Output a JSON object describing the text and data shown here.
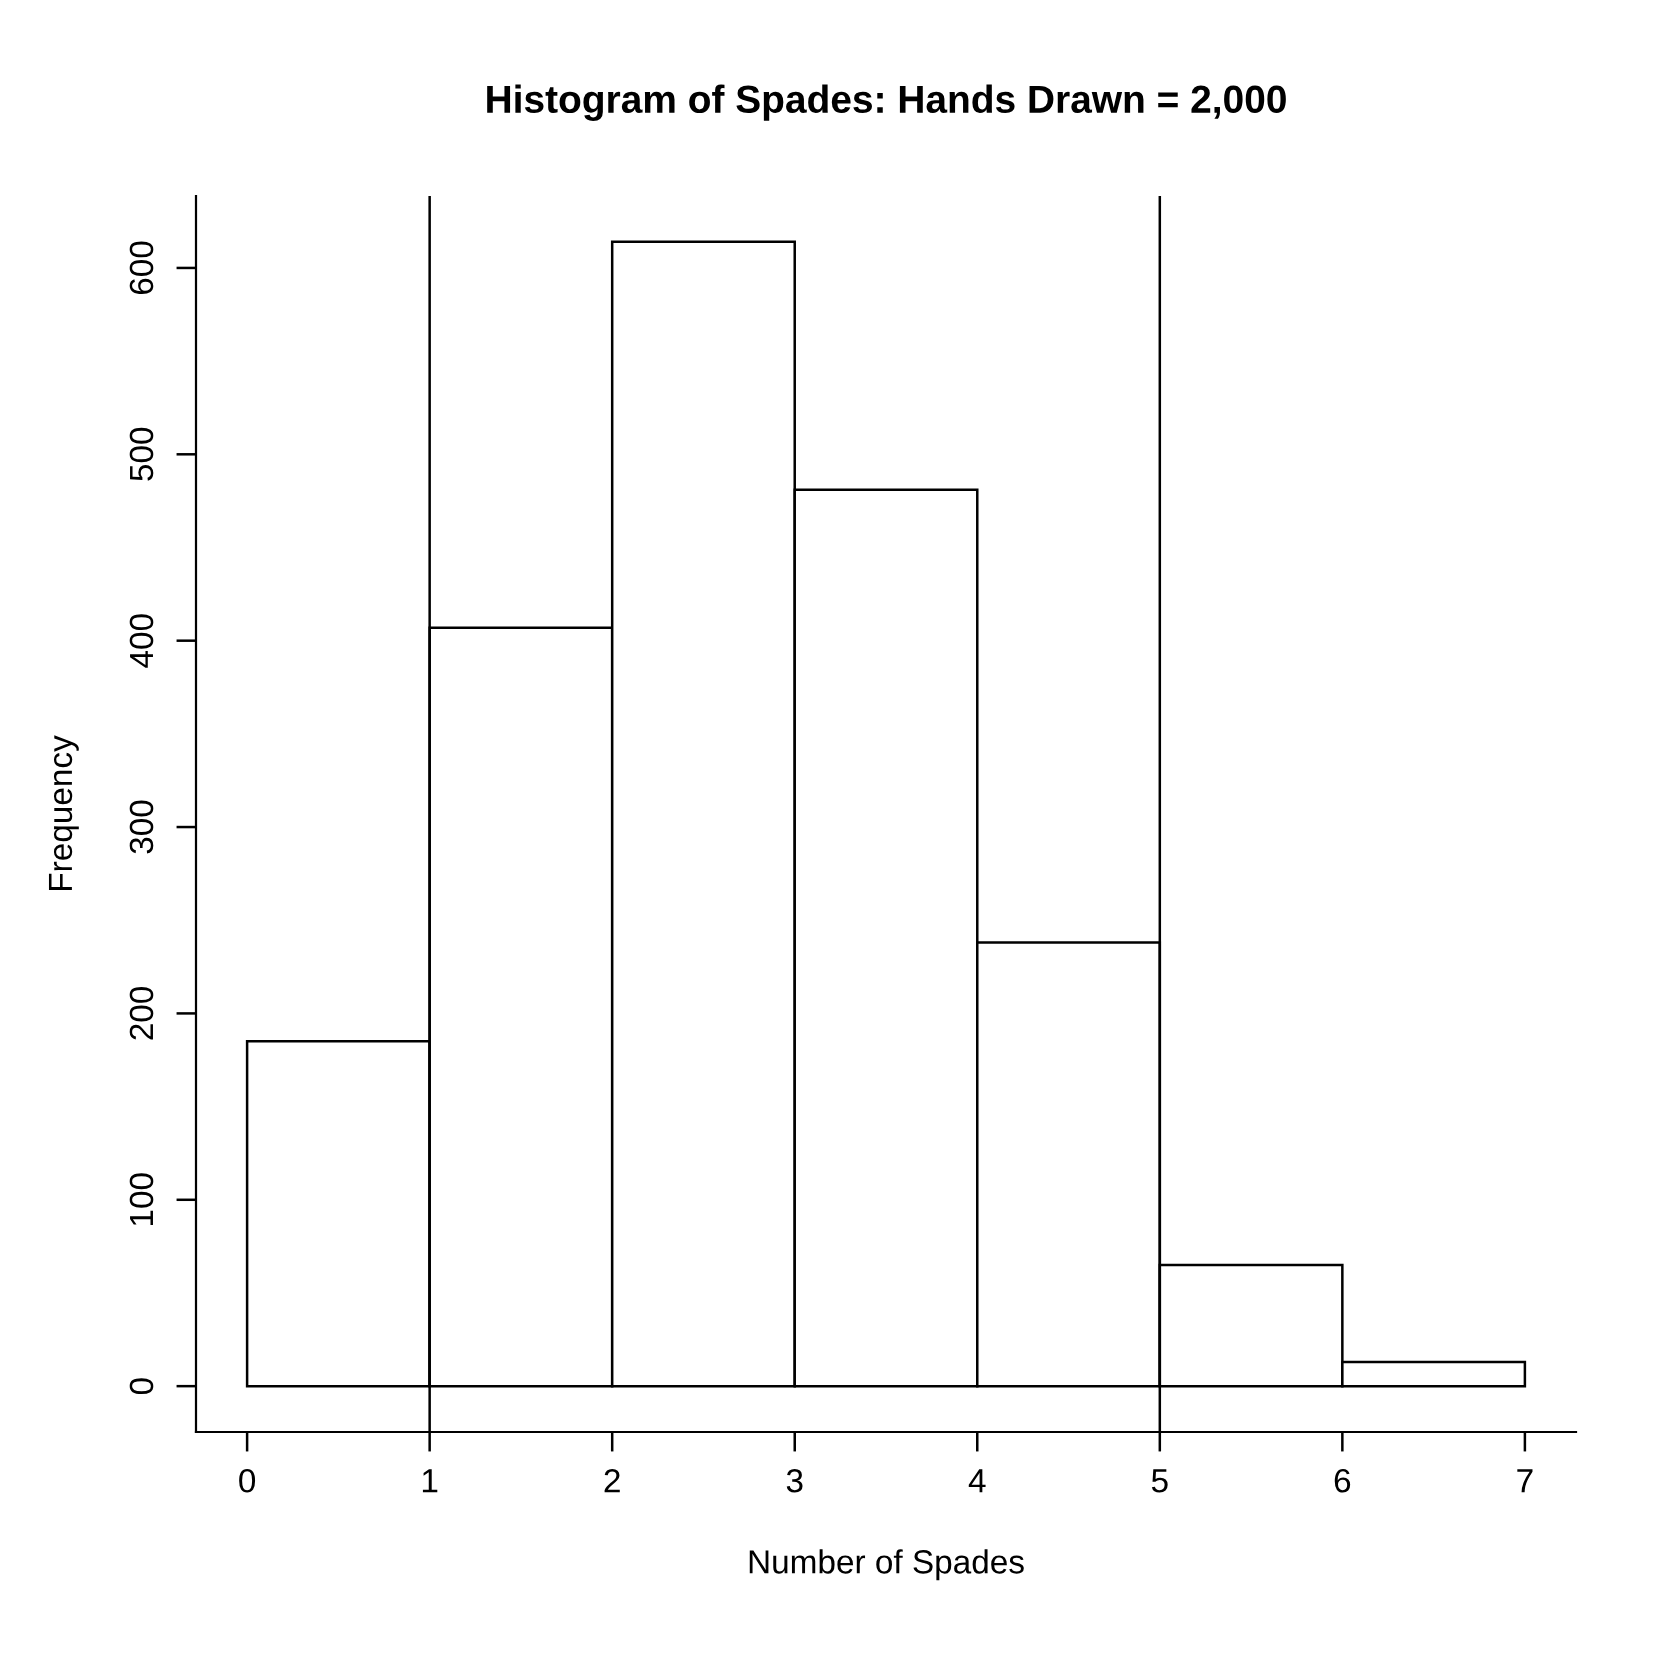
{
  "chart_data": {
    "type": "histogram",
    "title": "Histogram of Spades: Hands Drawn = 2,000",
    "xlabel": "Number of Spades",
    "ylabel": "Frequency",
    "bins": [
      0,
      1,
      2,
      3,
      4,
      5,
      6,
      7
    ],
    "values": [
      185,
      407,
      614,
      481,
      238,
      65,
      13
    ],
    "color": "#ffffff",
    "xlim": [
      -0.28,
      7.28
    ],
    "ylim": [
      -24.6,
      638.6
    ],
    "xticks": [
      0,
      1,
      2,
      3,
      4,
      5,
      6,
      7
    ],
    "yticks": [
      0,
      100,
      200,
      300,
      400,
      500,
      600
    ],
    "ref_lines": [
      {
        "axis": "x",
        "value": 1,
        "label": null,
        "color": "#000000"
      },
      {
        "axis": "x",
        "value": 5,
        "label": null,
        "color": "#000000"
      }
    ],
    "grid": false
  }
}
